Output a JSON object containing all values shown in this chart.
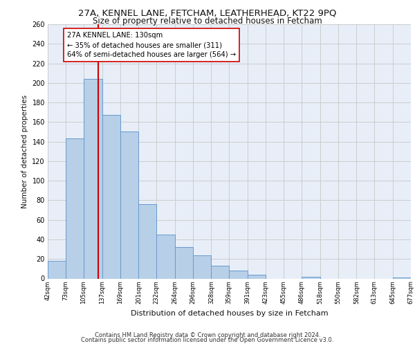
{
  "title1": "27A, KENNEL LANE, FETCHAM, LEATHERHEAD, KT22 9PQ",
  "title2": "Size of property relative to detached houses in Fetcham",
  "xlabel": "Distribution of detached houses by size in Fetcham",
  "ylabel": "Number of detached properties",
  "bar_edges": [
    42,
    73,
    105,
    137,
    169,
    201,
    232,
    264,
    296,
    328,
    359,
    391,
    423,
    455,
    486,
    518,
    550,
    582,
    613,
    645,
    677
  ],
  "bar_heights": [
    18,
    143,
    204,
    167,
    150,
    76,
    45,
    32,
    24,
    13,
    8,
    4,
    0,
    0,
    2,
    0,
    0,
    0,
    0,
    1
  ],
  "tick_labels": [
    "42sqm",
    "73sqm",
    "105sqm",
    "137sqm",
    "169sqm",
    "201sqm",
    "232sqm",
    "264sqm",
    "296sqm",
    "328sqm",
    "359sqm",
    "391sqm",
    "423sqm",
    "455sqm",
    "486sqm",
    "518sqm",
    "550sqm",
    "582sqm",
    "613sqm",
    "645sqm",
    "677sqm"
  ],
  "bar_color": "#b8cfe8",
  "bar_edge_color": "#6699cc",
  "property_line_x": 130,
  "property_line_color": "#cc0000",
  "annotation_title": "27A KENNEL LANE: 130sqm",
  "annotation_line1": "← 35% of detached houses are smaller (311)",
  "annotation_line2": "64% of semi-detached houses are larger (564) →",
  "annotation_box_edge": "#cc0000",
  "ylim": [
    0,
    260
  ],
  "yticks": [
    0,
    20,
    40,
    60,
    80,
    100,
    120,
    140,
    160,
    180,
    200,
    220,
    240,
    260
  ],
  "grid_color": "#cccccc",
  "bg_color": "#e8eef8",
  "footer1": "Contains HM Land Registry data © Crown copyright and database right 2024.",
  "footer2": "Contains public sector information licensed under the Open Government Licence v3.0."
}
